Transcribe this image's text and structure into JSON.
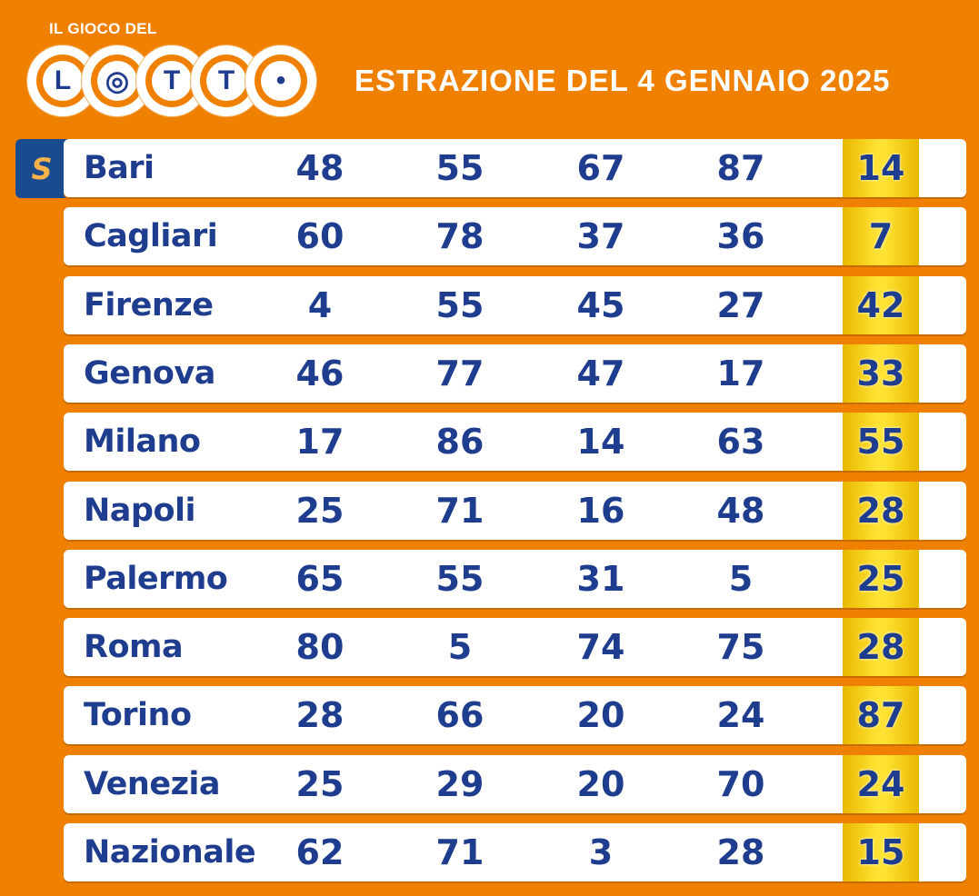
{
  "logo": {
    "top_text": "IL GIOCO DEL",
    "letters": [
      "L",
      "◎",
      "T",
      "T",
      "•"
    ]
  },
  "title": "ESTRAZIONE DEL 4 GENNAIO 2025",
  "badge": "S",
  "colors": {
    "background": "#f08000",
    "text": "#1f3d8f",
    "highlight": "#ffe233",
    "badge": "#1a4b8f"
  },
  "rows": [
    {
      "city": "Bari",
      "numbers": [
        "48",
        "55",
        "67",
        "87"
      ],
      "extra": "14"
    },
    {
      "city": "Cagliari",
      "numbers": [
        "60",
        "78",
        "37",
        "36"
      ],
      "extra": "7"
    },
    {
      "city": "Firenze",
      "numbers": [
        "4",
        "55",
        "45",
        "27"
      ],
      "extra": "42"
    },
    {
      "city": "Genova",
      "numbers": [
        "46",
        "77",
        "47",
        "17"
      ],
      "extra": "33"
    },
    {
      "city": "Milano",
      "numbers": [
        "17",
        "86",
        "14",
        "63"
      ],
      "extra": "55"
    },
    {
      "city": "Napoli",
      "numbers": [
        "25",
        "71",
        "16",
        "48"
      ],
      "extra": "28"
    },
    {
      "city": "Palermo",
      "numbers": [
        "65",
        "55",
        "31",
        "5"
      ],
      "extra": "25"
    },
    {
      "city": "Roma",
      "numbers": [
        "80",
        "5",
        "74",
        "75"
      ],
      "extra": "28"
    },
    {
      "city": "Torino",
      "numbers": [
        "28",
        "66",
        "20",
        "24"
      ],
      "extra": "87"
    },
    {
      "city": "Venezia",
      "numbers": [
        "25",
        "29",
        "20",
        "70"
      ],
      "extra": "24"
    },
    {
      "city": "Nazionale",
      "numbers": [
        "62",
        "71",
        "3",
        "28"
      ],
      "extra": "15"
    }
  ]
}
